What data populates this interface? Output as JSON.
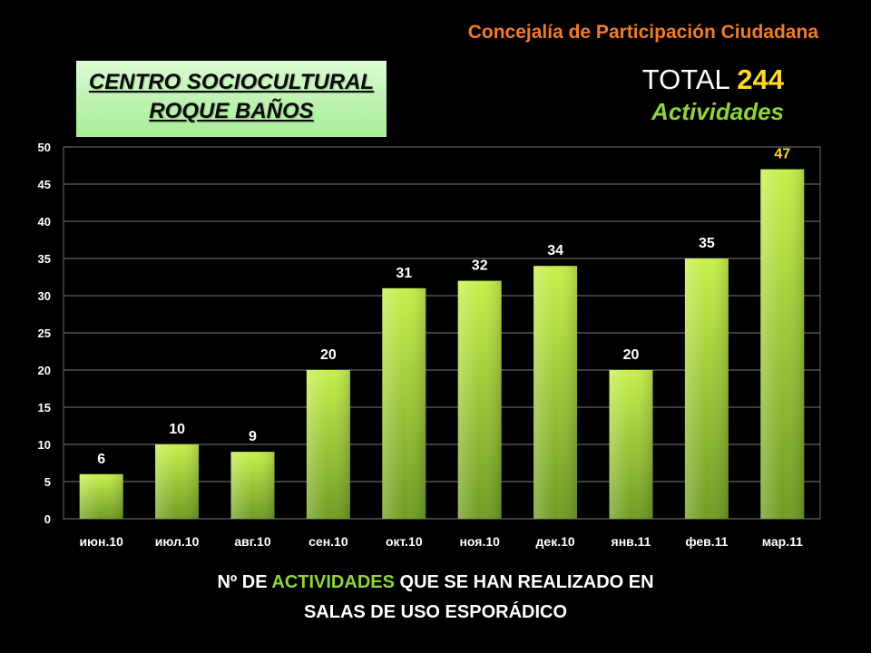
{
  "header": {
    "organization": "Concejalía de Participación Ciudadana",
    "center_line1": "CENTRO SOCIOCULTURAL",
    "center_line2": "ROQUE BAÑOS",
    "total_label": "TOTAL",
    "total_value": "244",
    "total_unit": "Actividades"
  },
  "caption": {
    "prefix": "Nº DE",
    "highlight": "ACTIVIDADES",
    "rest_line1": "QUE SE HAN REALIZADO EN",
    "line2": "SALAS DE USO ESPORÁDICO"
  },
  "colors": {
    "background": "#000000",
    "organization": "#f07b2a",
    "total_value": "#ffd92a",
    "accent_green": "#8fd43a",
    "bar_top": "#c6f04a",
    "bar_bottom": "#6f9c22",
    "last_bar_label": "#ffd92a"
  },
  "chart_data": {
    "type": "bar",
    "categories": [
      "июн.10",
      "июл.10",
      "авг.10",
      "сен.10",
      "окт.10",
      "ноя.10",
      "дек.10",
      "янв.11",
      "фев.11",
      "мар.11"
    ],
    "values": [
      6,
      10,
      9,
      20,
      31,
      32,
      34,
      20,
      35,
      47
    ],
    "data_labels": [
      "6",
      "10",
      "9",
      "20",
      "31",
      "32",
      "34",
      "20",
      "35",
      "47"
    ],
    "ylim": [
      0,
      50
    ],
    "y_ticks": [
      0,
      5,
      10,
      15,
      20,
      25,
      30,
      35,
      40,
      45,
      50
    ],
    "grid": true,
    "xlabel": "",
    "ylabel": ""
  }
}
